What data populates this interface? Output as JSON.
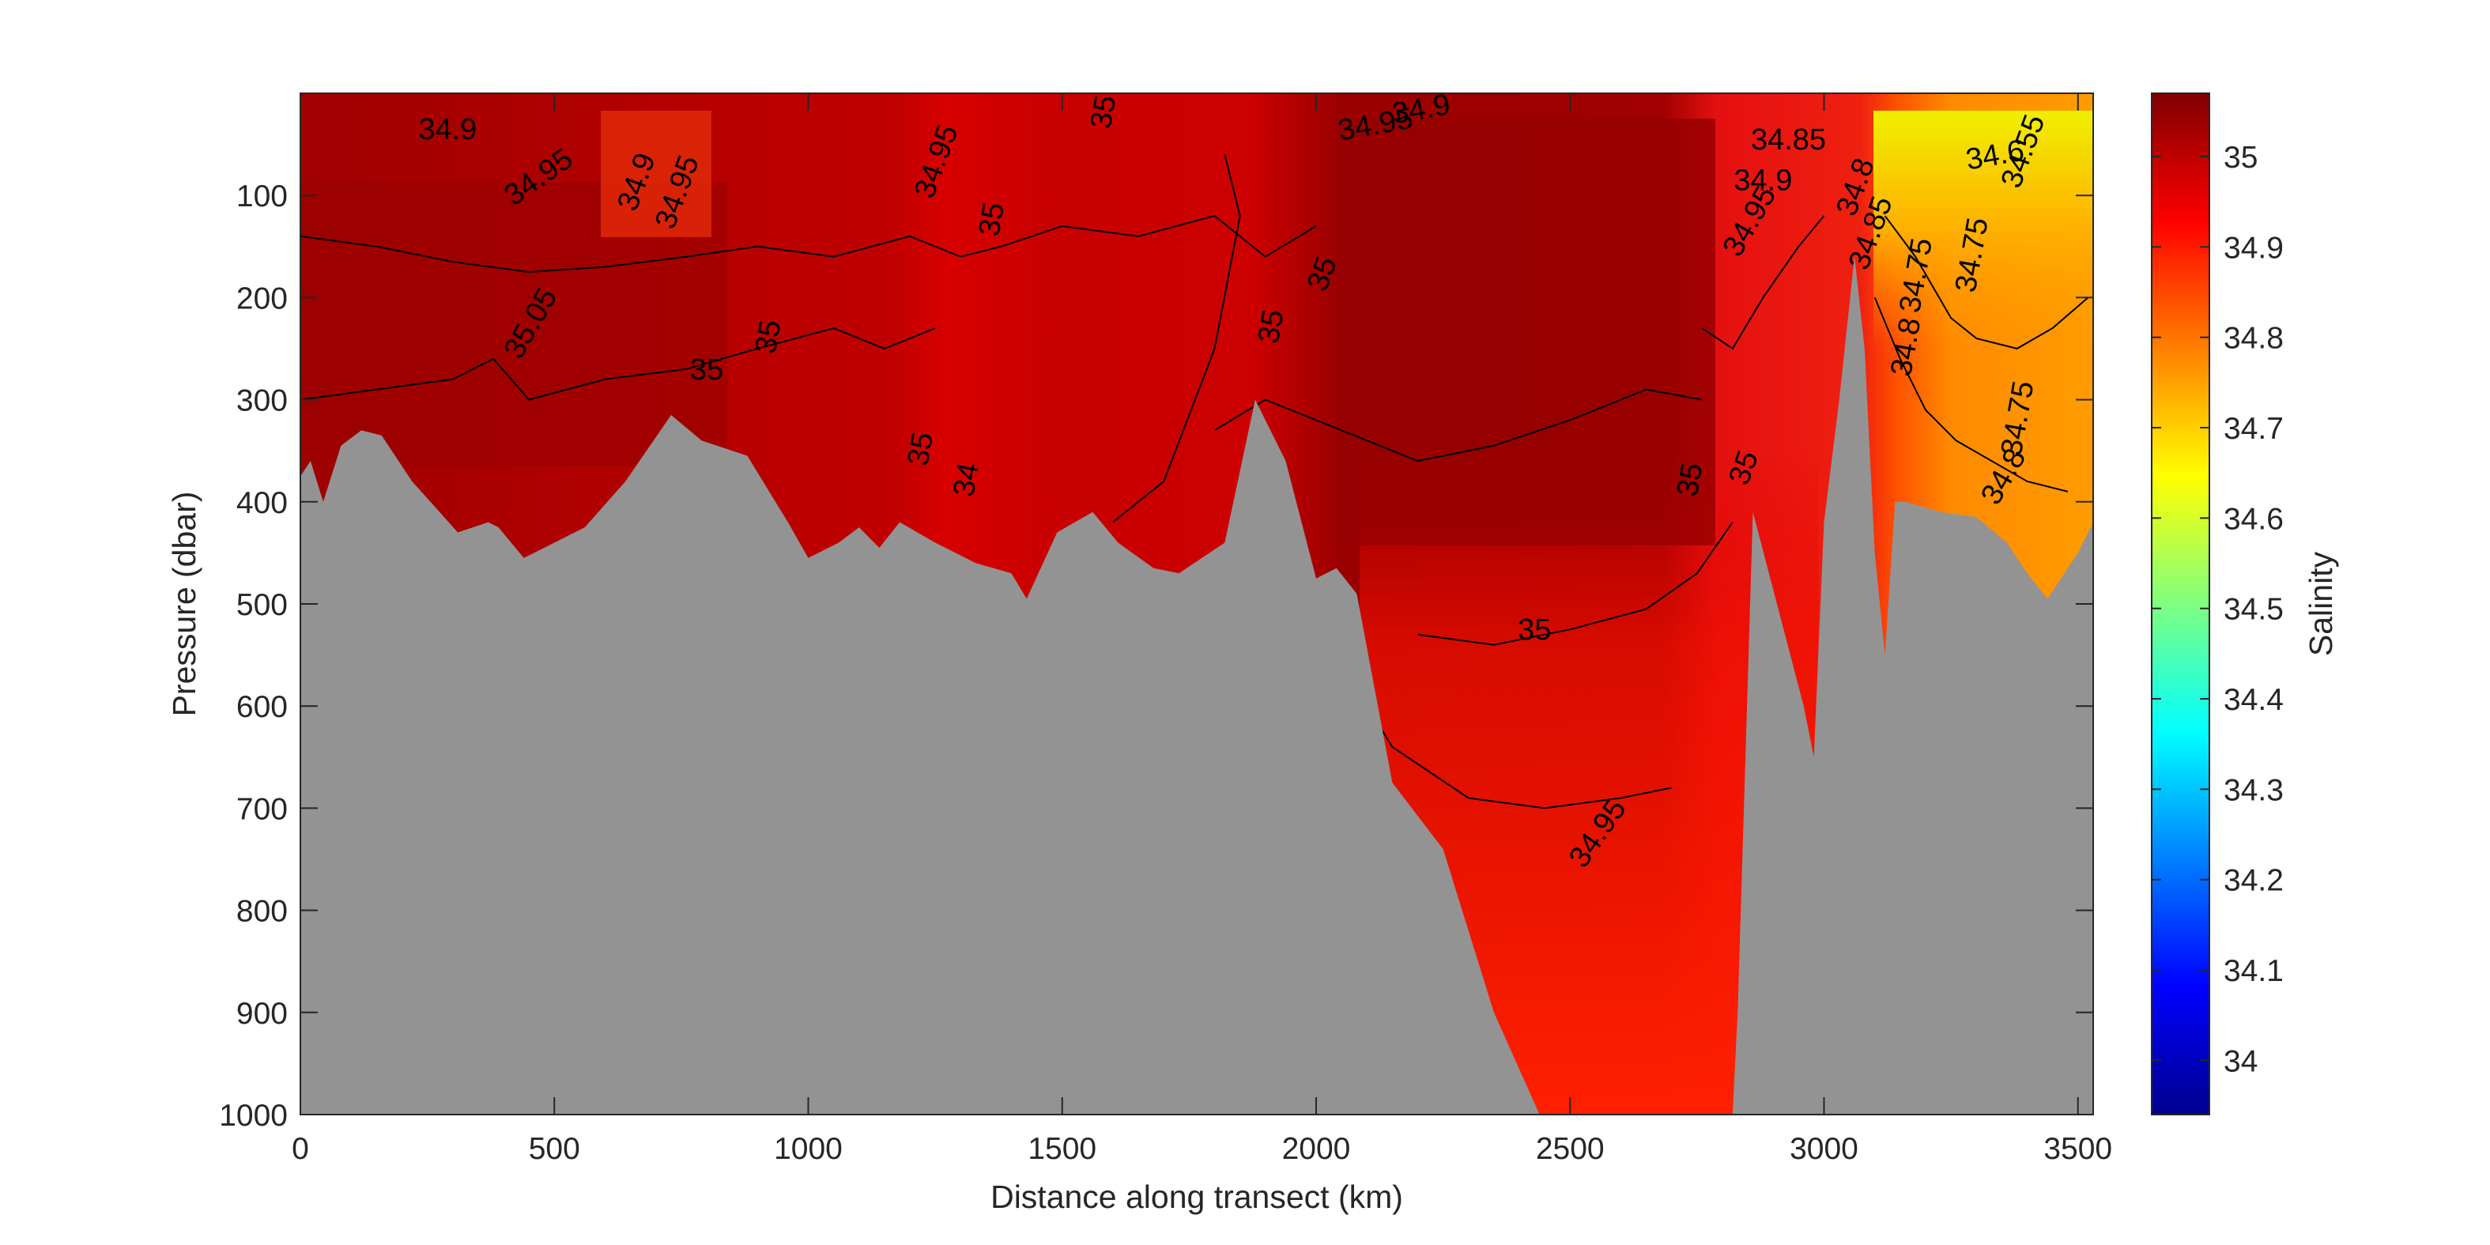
{
  "chart_data": {
    "type": "heatmap",
    "subtype": "filled-contour section",
    "xlabel": "Distance along transect (km)",
    "ylabel": "Pressure (dbar)",
    "colorbar_label": "Salinity",
    "xlim": [
      0,
      3530
    ],
    "ylim": [
      0,
      1000
    ],
    "y_reversed": true,
    "x_ticks": [
      0,
      500,
      1000,
      1500,
      2000,
      2500,
      3000,
      3500
    ],
    "x_tick_labels": [
      "0",
      "500",
      "1000",
      "1500",
      "2000",
      "2500",
      "3000",
      "3500"
    ],
    "y_ticks": [
      100,
      200,
      300,
      400,
      500,
      600,
      700,
      800,
      900,
      1000
    ],
    "y_tick_labels": [
      "100",
      "200",
      "300",
      "400",
      "500",
      "600",
      "700",
      "800",
      "900",
      "1000"
    ],
    "clim": [
      33.94,
      35.07
    ],
    "colorbar_ticks": [
      34,
      34.1,
      34.2,
      34.3,
      34.4,
      34.5,
      34.6,
      34.7,
      34.8,
      34.9,
      35
    ],
    "colorbar_tick_labels": [
      "34",
      "34.1",
      "34.2",
      "34.3",
      "34.4",
      "34.5",
      "34.6",
      "34.7",
      "34.8",
      "34.9",
      "35"
    ],
    "colormap": "jet",
    "bathymetry_color": "#939393",
    "grid": false,
    "legend": "none",
    "bathymetry_depth": {
      "x": [
        0,
        20,
        45,
        80,
        120,
        160,
        220,
        310,
        370,
        390,
        440,
        500,
        560,
        640,
        730,
        790,
        880,
        960,
        1000,
        1060,
        1100,
        1140,
        1180,
        1250,
        1330,
        1400,
        1430,
        1490,
        1560,
        1610,
        1680,
        1730,
        1820,
        1880,
        1940,
        2000,
        2040,
        2080,
        2150,
        2250,
        2350,
        2440,
        2480,
        2490,
        2800,
        2820,
        2830,
        2860,
        2960,
        2980,
        3000,
        3030,
        3060,
        3080,
        3100,
        3120,
        3140,
        3160,
        3230,
        3300,
        3360,
        3400,
        3440,
        3500,
        3530
      ],
      "y": [
        375,
        360,
        400,
        345,
        330,
        335,
        380,
        430,
        420,
        425,
        455,
        440,
        425,
        380,
        315,
        340,
        355,
        420,
        455,
        440,
        425,
        445,
        420,
        440,
        460,
        470,
        495,
        430,
        410,
        440,
        465,
        470,
        440,
        300,
        360,
        475,
        465,
        490,
        675,
        740,
        900,
        1000,
        1000,
        1000,
        1000,
        1000,
        900,
        410,
        600,
        650,
        420,
        300,
        160,
        250,
        450,
        550,
        400,
        400,
        410,
        415,
        440,
        470,
        495,
        450,
        420
      ]
    },
    "contour_labels": [
      {
        "x": 290,
        "y": 45,
        "label": "34.9",
        "angle": 0
      },
      {
        "x": 480,
        "y": 90,
        "label": "34.95",
        "angle": -35
      },
      {
        "x": 680,
        "y": 90,
        "label": "34.9",
        "angle": -70
      },
      {
        "x": 760,
        "y": 100,
        "label": "34.95",
        "angle": -70
      },
      {
        "x": 470,
        "y": 230,
        "label": "35.05",
        "angle": -60
      },
      {
        "x": 800,
        "y": 280,
        "label": "35",
        "angle": 0
      },
      {
        "x": 940,
        "y": 240,
        "label": "35",
        "angle": -80
      },
      {
        "x": 1270,
        "y": 70,
        "label": "34.95",
        "angle": -70
      },
      {
        "x": 1380,
        "y": 125,
        "label": "35",
        "angle": -80
      },
      {
        "x": 1600,
        "y": 20,
        "label": "35",
        "angle": -80
      },
      {
        "x": 2030,
        "y": 180,
        "label": "35",
        "angle": -70
      },
      {
        "x": 1930,
        "y": 230,
        "label": "35",
        "angle": -80
      },
      {
        "x": 1240,
        "y": 350,
        "label": "35",
        "angle": -80
      },
      {
        "x": 1330,
        "y": 380,
        "label": "34",
        "angle": -80
      },
      {
        "x": 2120,
        "y": 40,
        "label": "34.95",
        "angle": -10
      },
      {
        "x": 2210,
        "y": 25,
        "label": "34.9",
        "angle": -10
      },
      {
        "x": 2430,
        "y": 535,
        "label": "35",
        "angle": 0
      },
      {
        "x": 2570,
        "y": 730,
        "label": "34.95",
        "angle": -55
      },
      {
        "x": 2860,
        "y": 370,
        "label": "35",
        "angle": -70
      },
      {
        "x": 2755,
        "y": 380,
        "label": "35",
        "angle": -80
      },
      {
        "x": 2930,
        "y": 55,
        "label": "34.85",
        "angle": 0
      },
      {
        "x": 2880,
        "y": 95,
        "label": "34.9",
        "angle": 0
      },
      {
        "x": 2870,
        "y": 130,
        "label": "34.95",
        "angle": -60
      },
      {
        "x": 3080,
        "y": 95,
        "label": "34.8",
        "angle": -70
      },
      {
        "x": 3110,
        "y": 140,
        "label": "34.85",
        "angle": -70
      },
      {
        "x": 3340,
        "y": 70,
        "label": "34.6",
        "angle": -10
      },
      {
        "x": 3410,
        "y": 60,
        "label": "34.55",
        "angle": -70
      },
      {
        "x": 3200,
        "y": 180,
        "label": "34.75",
        "angle": -80
      },
      {
        "x": 3310,
        "y": 160,
        "label": "34.75",
        "angle": -80
      },
      {
        "x": 3180,
        "y": 250,
        "label": "34.8",
        "angle": -80
      },
      {
        "x": 3400,
        "y": 320,
        "label": "34.75",
        "angle": -80
      },
      {
        "x": 3370,
        "y": 380,
        "label": "34.8",
        "angle": -60
      }
    ]
  }
}
